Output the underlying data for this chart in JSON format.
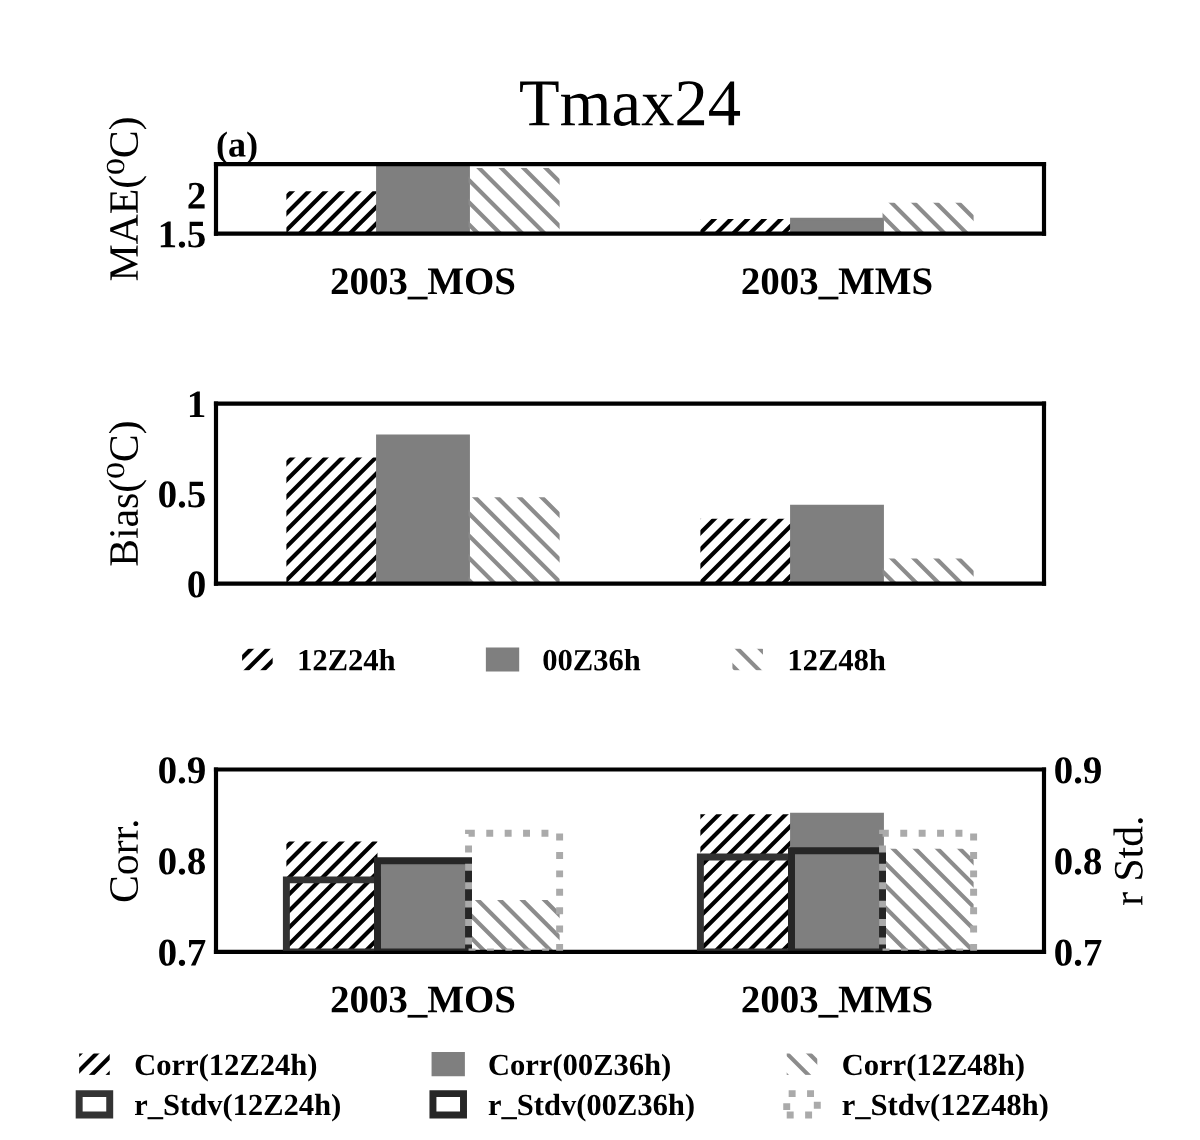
{
  "chart_data": [
    {
      "type": "bar",
      "title": "Tmax24",
      "ylabel": "MAE(⁰C)",
      "annotations": [
        "(a)"
      ],
      "categories": [
        "2003_MOS",
        "2003_MMS"
      ],
      "ylim": [
        1.5,
        2.4
      ],
      "yticks": [
        1.5,
        2
      ],
      "legend": false,
      "grid": false,
      "series": [
        {
          "color": "#000000",
          "values": [
            2.05,
            1.69
          ]
        },
        {
          "color": "#7f7f7f",
          "values": [
            2.4,
            1.69
          ]
        },
        {
          "color": "#8c8c8c",
          "values": [
            2.35,
            1.9
          ]
        }
      ]
    },
    {
      "type": "bar",
      "ylabel": "Bias(⁰C)",
      "categories": [
        null,
        null
      ],
      "ylim": [
        0,
        1
      ],
      "yticks": [
        0,
        0.5,
        1
      ],
      "legend": "bottom",
      "grid": false,
      "series": [
        {
          "name": "12Z24h",
          "color": "#000000",
          "values": [
            0.7,
            0.36
          ]
        },
        {
          "name": "00Z36h",
          "color": "#7f7f7f",
          "values": [
            0.82,
            0.43
          ]
        },
        {
          "name": "12Z48h",
          "color": "#8c8c8c",
          "values": [
            0.48,
            0.14
          ]
        }
      ]
    },
    {
      "type": "bar",
      "ylabel": "Corr.",
      "y2label": "r Std.",
      "categories": [
        "2003_MOS",
        "2003_MMS"
      ],
      "ylim": [
        0.7,
        0.9
      ],
      "yticks": [
        0.7,
        0.8,
        0.9
      ],
      "y2lim": [
        0.7,
        0.9
      ],
      "y2ticks": [
        0.7,
        0.8,
        0.9
      ],
      "legend": "bottom",
      "grid": false,
      "series": [
        {
          "name": "Corr(12Z24h)",
          "color": "#000000",
          "values": [
            0.821,
            0.851
          ]
        },
        {
          "name": "Corr(00Z36h)",
          "color": "#7f7f7f",
          "values": [
            0.796,
            0.851
          ]
        },
        {
          "name": "Corr(12Z48h)",
          "color": "#8c8c8c",
          "values": [
            0.757,
            0.813
          ]
        },
        {
          "name": "r_Stdv(12Z24h)",
          "axis": "y2",
          "color": "#333333",
          "values": [
            0.779,
            0.804
          ]
        },
        {
          "name": "r_Stdv(00Z36h)",
          "axis": "y2",
          "color": "#262626",
          "values": [
            0.8,
            0.811
          ]
        },
        {
          "name": "r_Stdv(12Z48h)",
          "axis": "y2",
          "color": "#aaaaaa",
          "values": [
            0.83,
            0.83
          ]
        }
      ]
    }
  ]
}
